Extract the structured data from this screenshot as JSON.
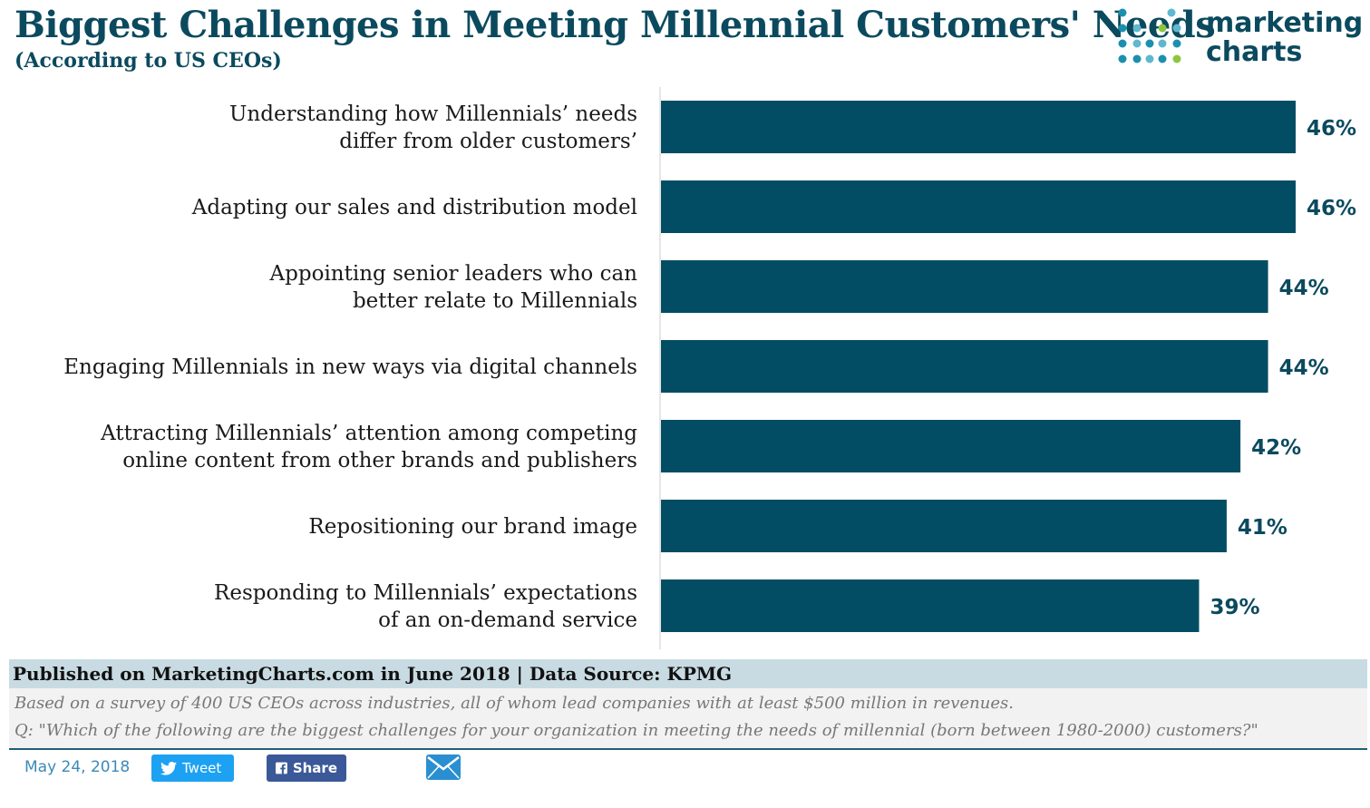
{
  "title": "Biggest Challenges in Meeting Millennial Customers' Needs",
  "subtitle": "(According to US CEOs)",
  "logo": {
    "line1": "marketing",
    "line2": "charts",
    "icon": "dot-grid-logo-icon"
  },
  "colors": {
    "bar": "#024d63",
    "label": "#0b4a5e",
    "text": "#1a1a1a",
    "axis": "#dddddd"
  },
  "chart_data": {
    "type": "bar",
    "orientation": "horizontal",
    "title": "Biggest Challenges in Meeting Millennial Customers' Needs",
    "subtitle": "(According to US CEOs)",
    "xlim": [
      0,
      46
    ],
    "grid": false,
    "categories": [
      [
        "Understanding how Millennials’ needs",
        "differ from older customers’"
      ],
      [
        "Adapting our sales and distribution model"
      ],
      [
        "Appointing senior leaders who can",
        "better relate to Millennials"
      ],
      [
        "Engaging Millennials in new ways via digital channels"
      ],
      [
        "Attracting Millennials’ attention among competing",
        "online content from other brands and publishers"
      ],
      [
        "Repositioning our brand image"
      ],
      [
        "Responding to Millennials’ expectations",
        "of an on-demand service"
      ]
    ],
    "values": [
      46,
      46,
      44,
      44,
      42,
      41,
      39
    ],
    "value_labels": [
      "46%",
      "46%",
      "44%",
      "44%",
      "42%",
      "41%",
      "39%"
    ]
  },
  "footer": {
    "published": "Published on MarketingCharts.com in June 2018 | Data Source: KPMG",
    "note1": "Based on a survey of 400 US CEOs across industries, all of whom lead companies with at least $500 million in revenues.",
    "note2": "Q: \"Which of the following are the biggest challenges for your organization in meeting the needs of millennial (born between 1980-2000) customers?\""
  },
  "social": {
    "date": "May 24, 2018",
    "tweet_label": "Tweet",
    "share_label": "Share",
    "email_icon": "envelope-icon"
  }
}
